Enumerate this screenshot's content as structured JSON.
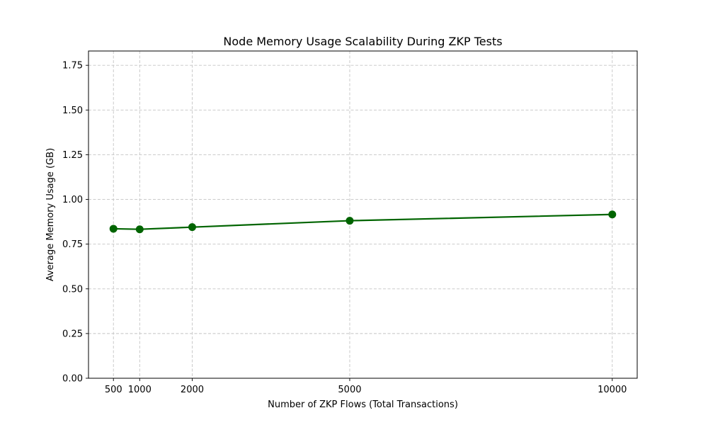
{
  "chart_data": {
    "type": "line",
    "title": "Node Memory Usage Scalability During ZKP Tests",
    "xlabel": "Number of ZKP Flows (Total Transactions)",
    "ylabel": "Average Memory Usage (GB)",
    "x": [
      500,
      1000,
      2000,
      5000,
      10000
    ],
    "series": [
      {
        "values": [
          0.836,
          0.833,
          0.845,
          0.881,
          0.916
        ],
        "color": "#006400",
        "marker": "circle"
      }
    ],
    "x_ticks": [
      500,
      1000,
      2000,
      5000,
      10000
    ],
    "x_tick_labels": [
      "500",
      "1000",
      "2000",
      "5000",
      "10000"
    ],
    "y_ticks": [
      0,
      0.25,
      0.5,
      0.75,
      1.0,
      1.25,
      1.5,
      1.75
    ],
    "y_tick_labels": [
      "0.00",
      "0.25",
      "0.50",
      "0.75",
      "1.00",
      "1.25",
      "1.50",
      "1.75"
    ],
    "xlim": [
      25,
      10475
    ],
    "ylim": [
      0,
      1.83
    ],
    "grid": true,
    "line_color": "#006400",
    "grid_color": "#c4c4c4"
  }
}
